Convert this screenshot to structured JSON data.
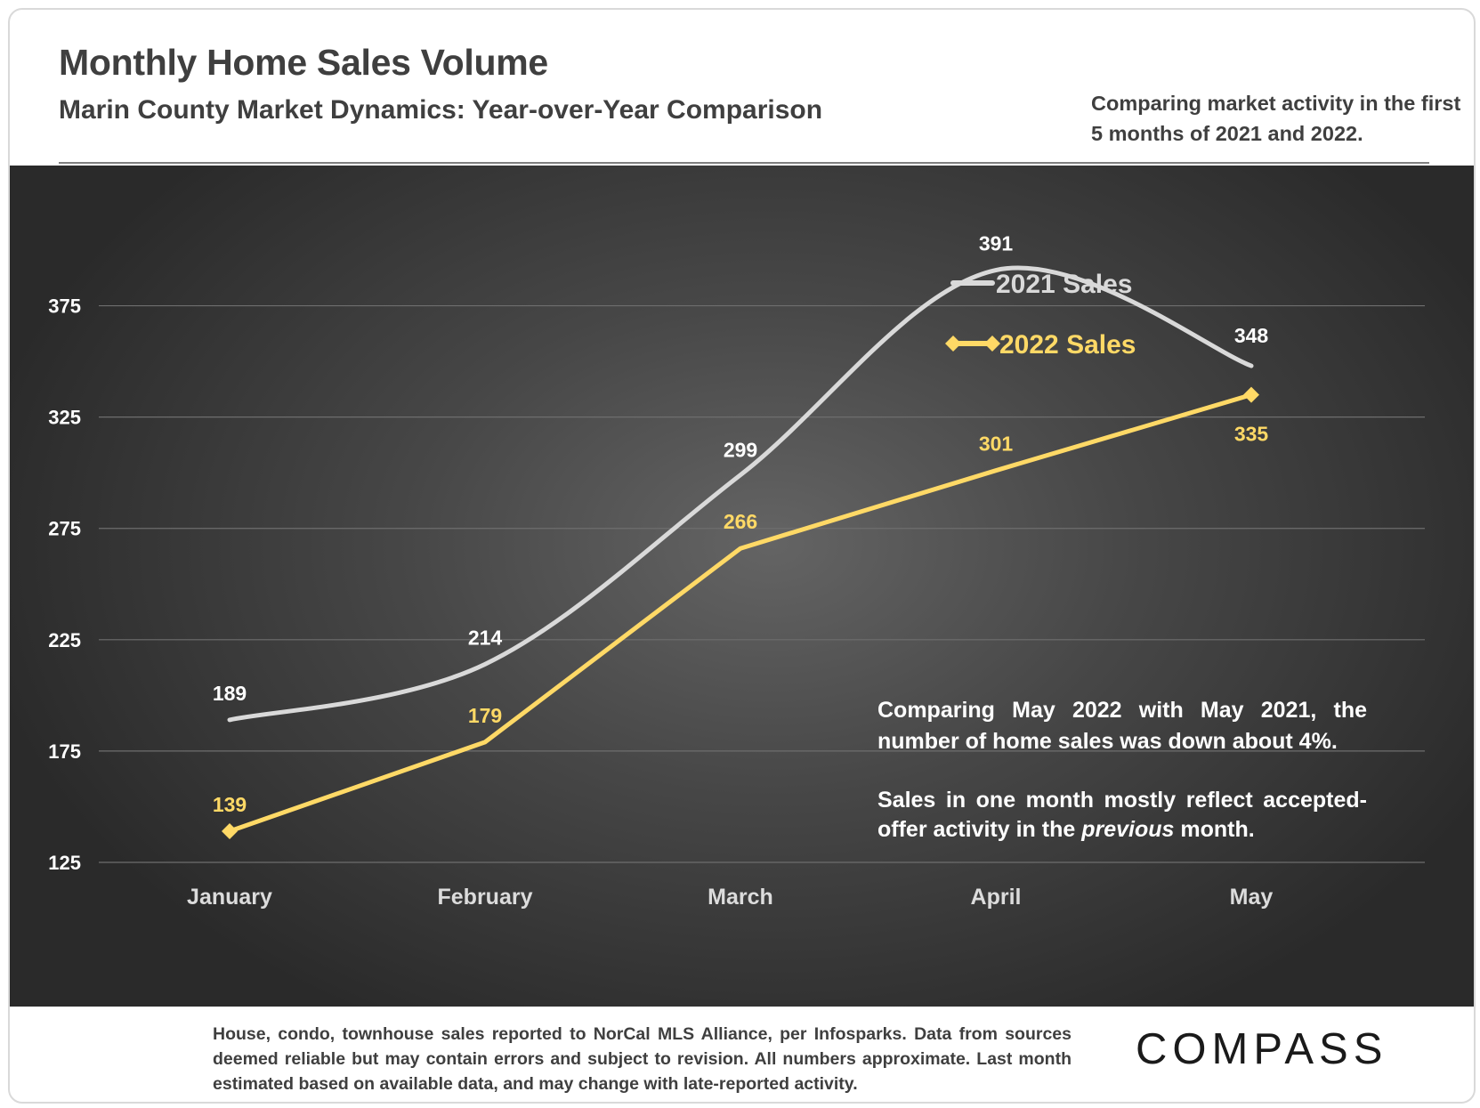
{
  "header": {
    "title": "Monthly Home Sales Volume",
    "subtitle": "Marin County Market Dynamics: Year-over-Year Comparison",
    "note": "Comparing market activity in the first 5 months of 2021 and 2022."
  },
  "commentary": {
    "line1": "Comparing May 2022 with May 2021, the number of home sales was down about 4%.",
    "line2_a": "Sales in one month mostly reflect accepted-offer activity in the ",
    "line2_em": "previous",
    "line2_b": " month."
  },
  "footer": {
    "text": "House, condo, townhouse sales reported to NorCal MLS Alliance, per Infosparks. Data from sources deemed reliable but may contain errors and subject to revision. All numbers approximate. Last month estimated based on available data, and may change with late-reported activity.",
    "logo": "COMPASS"
  },
  "chart_data": {
    "type": "line",
    "categories": [
      "January",
      "February",
      "March",
      "April",
      "May"
    ],
    "series": [
      {
        "name": "2021 Sales",
        "values": [
          189,
          214,
          299,
          391,
          348
        ],
        "color": "#d9d9d9",
        "smooth": true
      },
      {
        "name": "2022 Sales",
        "values": [
          139,
          179,
          266,
          301,
          335
        ],
        "color": "#ffd966",
        "smooth": false
      }
    ],
    "yticks": [
      125,
      175,
      225,
      275,
      325,
      375
    ],
    "ylim": [
      125,
      400
    ],
    "grid": true,
    "legend_position": "right",
    "xlabel": "",
    "ylabel": ""
  }
}
